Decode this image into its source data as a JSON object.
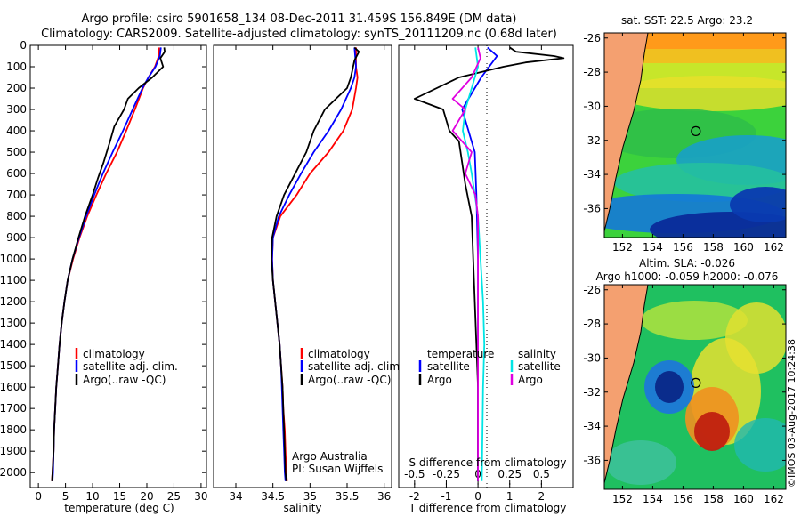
{
  "title_line1": "Argo profile: csiro 5901658_134 08-Dec-2011 31.459S 156.849E (DM data)",
  "title_line2": "Climatology: CARS2009. Satellite-adjusted climatology: synTS_20111209.nc (0.68d later)",
  "timestamp": "©IMOS 03-Aug-2017 10:24:38",
  "colors": {
    "clim": "#ff0000",
    "sat": "#0000ff",
    "argo": "#000000",
    "sal_sat": "#00e5e5",
    "sal_argo": "#e000e0",
    "land": "#f4a070"
  },
  "chart_data": [
    {
      "id": "temperature",
      "type": "line",
      "xlabel": "temperature (deg C)",
      "ylabel": "",
      "xlim": [
        -1.5,
        31
      ],
      "ylim": [
        2070,
        0
      ],
      "xticks": [
        "0",
        "5",
        "10",
        "15",
        "20",
        "25",
        "30"
      ],
      "yticks": [
        "0",
        "100",
        "200",
        "300",
        "400",
        "500",
        "600",
        "700",
        "800",
        "900",
        "1000",
        "1100",
        "1200",
        "1300",
        "1400",
        "1500",
        "1600",
        "1700",
        "1800",
        "1900",
        "2000"
      ],
      "legend": [
        "climatology",
        "satellite-adj. clim.",
        "Argo(..raw -QC)"
      ],
      "series": [
        {
          "name": "climatology",
          "color": "#ff0000",
          "points": [
            [
              22.3,
              10
            ],
            [
              22.2,
              50
            ],
            [
              21.5,
              100
            ],
            [
              20.3,
              150
            ],
            [
              19.3,
              200
            ],
            [
              17.8,
              300
            ],
            [
              16.2,
              400
            ],
            [
              14.5,
              500
            ],
            [
              12.5,
              600
            ],
            [
              10.7,
              700
            ],
            [
              9.0,
              800
            ],
            [
              7.6,
              900
            ],
            [
              6.4,
              1000
            ],
            [
              5.4,
              1100
            ],
            [
              4.8,
              1200
            ],
            [
              4.3,
              1300
            ],
            [
              3.9,
              1400
            ],
            [
              3.6,
              1500
            ],
            [
              3.3,
              1600
            ],
            [
              3.1,
              1700
            ],
            [
              2.9,
              1800
            ],
            [
              2.8,
              1900
            ],
            [
              2.6,
              2000
            ],
            [
              2.5,
              2040
            ]
          ]
        },
        {
          "name": "satellite-adj. clim.",
          "color": "#0000ff",
          "points": [
            [
              22.6,
              10
            ],
            [
              22.4,
              50
            ],
            [
              21.6,
              100
            ],
            [
              20.3,
              150
            ],
            [
              19.2,
              200
            ],
            [
              17.4,
              300
            ],
            [
              15.6,
              400
            ],
            [
              13.7,
              500
            ],
            [
              11.9,
              600
            ],
            [
              10.3,
              700
            ],
            [
              8.8,
              800
            ],
            [
              7.5,
              900
            ],
            [
              6.3,
              1000
            ],
            [
              5.4,
              1100
            ],
            [
              4.8,
              1200
            ],
            [
              4.3,
              1300
            ],
            [
              3.9,
              1400
            ],
            [
              3.6,
              1500
            ],
            [
              3.3,
              1600
            ],
            [
              3.1,
              1700
            ],
            [
              2.9,
              1800
            ],
            [
              2.8,
              1900
            ],
            [
              2.7,
              2000
            ],
            [
              2.6,
              2040
            ]
          ]
        },
        {
          "name": "Argo(..raw -QC)",
          "color": "#000000",
          "points": [
            [
              23.2,
              10
            ],
            [
              23.3,
              30
            ],
            [
              22.5,
              60
            ],
            [
              23.0,
              100
            ],
            [
              21.0,
              150
            ],
            [
              18.5,
              200
            ],
            [
              16.5,
              250
            ],
            [
              15.8,
              300
            ],
            [
              14.0,
              380
            ],
            [
              13.2,
              450
            ],
            [
              12.0,
              550
            ],
            [
              11.0,
              620
            ],
            [
              10.0,
              700
            ],
            [
              8.6,
              800
            ],
            [
              7.4,
              900
            ],
            [
              6.3,
              1000
            ],
            [
              5.4,
              1100
            ],
            [
              4.8,
              1200
            ],
            [
              4.3,
              1300
            ],
            [
              3.9,
              1400
            ],
            [
              3.6,
              1500
            ],
            [
              3.3,
              1600
            ],
            [
              3.1,
              1700
            ],
            [
              2.9,
              1800
            ],
            [
              2.8,
              1900
            ],
            [
              2.6,
              2000
            ],
            [
              2.5,
              2040
            ]
          ]
        }
      ]
    },
    {
      "id": "salinity",
      "type": "line",
      "xlabel": "salinity",
      "xlim": [
        33.7,
        36.1
      ],
      "ylim": [
        2070,
        0
      ],
      "xticks": [
        "34",
        "34.5",
        "35",
        "35.5",
        "36"
      ],
      "legend": [
        "climatology",
        "satellite-adj. clim.",
        "Argo(..raw -QC)"
      ],
      "annotation": [
        "Argo Australia",
        "PI: Susan Wijffels"
      ],
      "series": [
        {
          "name": "climatology",
          "color": "#ff0000",
          "points": [
            [
              35.62,
              10
            ],
            [
              35.62,
              100
            ],
            [
              35.64,
              150
            ],
            [
              35.62,
              200
            ],
            [
              35.57,
              300
            ],
            [
              35.45,
              400
            ],
            [
              35.25,
              500
            ],
            [
              35.0,
              600
            ],
            [
              34.82,
              700
            ],
            [
              34.6,
              800
            ],
            [
              34.5,
              900
            ],
            [
              34.49,
              1000
            ],
            [
              34.5,
              1100
            ],
            [
              34.53,
              1200
            ],
            [
              34.56,
              1300
            ],
            [
              34.59,
              1400
            ],
            [
              34.61,
              1500
            ],
            [
              34.63,
              1600
            ],
            [
              34.64,
              1700
            ],
            [
              34.66,
              1800
            ],
            [
              34.67,
              1900
            ],
            [
              34.68,
              2000
            ],
            [
              34.69,
              2040
            ]
          ]
        },
        {
          "name": "satellite-adj. clim.",
          "color": "#0000ff",
          "points": [
            [
              35.6,
              10
            ],
            [
              35.62,
              100
            ],
            [
              35.6,
              150
            ],
            [
              35.55,
              200
            ],
            [
              35.42,
              300
            ],
            [
              35.25,
              400
            ],
            [
              35.05,
              500
            ],
            [
              34.88,
              600
            ],
            [
              34.72,
              700
            ],
            [
              34.58,
              800
            ],
            [
              34.5,
              900
            ],
            [
              34.49,
              1000
            ],
            [
              34.5,
              1100
            ],
            [
              34.53,
              1200
            ],
            [
              34.56,
              1300
            ],
            [
              34.59,
              1400
            ],
            [
              34.61,
              1500
            ],
            [
              34.62,
              1600
            ],
            [
              34.63,
              1700
            ],
            [
              34.64,
              1800
            ],
            [
              34.65,
              1900
            ],
            [
              34.66,
              2000
            ],
            [
              34.67,
              2040
            ]
          ]
        },
        {
          "name": "Argo(..raw -QC)",
          "color": "#000000",
          "points": [
            [
              35.6,
              10
            ],
            [
              35.66,
              30
            ],
            [
              35.6,
              70
            ],
            [
              35.55,
              150
            ],
            [
              35.5,
              200
            ],
            [
              35.2,
              300
            ],
            [
              35.05,
              400
            ],
            [
              34.95,
              500
            ],
            [
              34.8,
              600
            ],
            [
              34.65,
              700
            ],
            [
              34.55,
              800
            ],
            [
              34.49,
              900
            ],
            [
              34.48,
              1000
            ],
            [
              34.5,
              1100
            ],
            [
              34.53,
              1200
            ],
            [
              34.56,
              1300
            ],
            [
              34.59,
              1400
            ],
            [
              34.61,
              1500
            ],
            [
              34.63,
              1600
            ],
            [
              34.64,
              1700
            ],
            [
              34.65,
              1800
            ],
            [
              34.66,
              1900
            ],
            [
              34.67,
              2000
            ],
            [
              34.68,
              2040
            ]
          ]
        }
      ]
    },
    {
      "id": "difference",
      "type": "line",
      "xlabel": "T difference from climatology",
      "xlabel_top": "S difference from climatology",
      "xlim": [
        -2.5,
        3.0
      ],
      "ylim": [
        2070,
        0
      ],
      "xticks": [
        "-2",
        "-1",
        "0",
        "1",
        "2"
      ],
      "xticks_top": [
        "-0.5",
        "-0.25",
        "0",
        "0.25",
        "0.5"
      ],
      "legend": {
        "temperature_title": "temperature",
        "salinity_title": "salinity",
        "temperature": [
          "satellite",
          "Argo"
        ],
        "salinity": [
          "satellite",
          "Argo"
        ]
      },
      "series": [
        {
          "name": "T satellite",
          "color": "#0000ff",
          "points": [
            [
              0.3,
              10
            ],
            [
              0.6,
              50
            ],
            [
              0.1,
              150
            ],
            [
              -0.3,
              250
            ],
            [
              -0.5,
              300
            ],
            [
              -0.3,
              400
            ],
            [
              -0.1,
              500
            ],
            [
              -0.05,
              700
            ],
            [
              0,
              1000
            ],
            [
              0,
              2040
            ]
          ]
        },
        {
          "name": "T Argo",
          "color": "#000000",
          "points": [
            [
              1.0,
              10
            ],
            [
              1.2,
              30
            ],
            [
              2.4,
              50
            ],
            [
              2.7,
              60
            ],
            [
              1.5,
              80
            ],
            [
              0.8,
              100
            ],
            [
              -0.6,
              150
            ],
            [
              -2.0,
              250
            ],
            [
              -1.1,
              300
            ],
            [
              -0.9,
              400
            ],
            [
              -0.6,
              450
            ],
            [
              -0.5,
              550
            ],
            [
              -0.4,
              650
            ],
            [
              -0.2,
              800
            ],
            [
              -0.15,
              1000
            ],
            [
              -0.1,
              1200
            ],
            [
              -0.05,
              1400
            ],
            [
              0,
              1600
            ],
            [
              0,
              2040
            ]
          ]
        },
        {
          "name": "S satellite",
          "color": "#00e5e5",
          "points": [
            [
              -0.02,
              10
            ],
            [
              0.0,
              100
            ],
            [
              -0.05,
              200
            ],
            [
              -0.1,
              300
            ],
            [
              -0.12,
              400
            ],
            [
              -0.08,
              500
            ],
            [
              -0.05,
              600
            ],
            [
              0.0,
              800
            ],
            [
              0.02,
              1000
            ],
            [
              0.04,
              1200
            ],
            [
              0.05,
              1400
            ],
            [
              0.04,
              1600
            ],
            [
              0.03,
              2040
            ]
          ]
        },
        {
          "name": "S Argo",
          "color": "#e000e0",
          "points": [
            [
              0.0,
              10
            ],
            [
              0.02,
              60
            ],
            [
              -0.05,
              150
            ],
            [
              -0.2,
              250
            ],
            [
              -0.1,
              300
            ],
            [
              -0.2,
              400
            ],
            [
              -0.05,
              500
            ],
            [
              -0.1,
              600
            ],
            [
              -0.02,
              700
            ],
            [
              0.0,
              800
            ],
            [
              0.0,
              2040
            ]
          ]
        }
      ]
    },
    {
      "id": "sst_map",
      "type": "heatmap",
      "title": "sat. SST: 22.5  Argo: 23.2",
      "xlim": [
        150.8,
        162.8
      ],
      "ylim": [
        -37.7,
        -25.7
      ],
      "xticks": [
        "152",
        "154",
        "156",
        "158",
        "160",
        "162"
      ],
      "yticks": [
        "-26",
        "-28",
        "-30",
        "-32",
        "-34",
        "-36"
      ],
      "profile_location": [
        156.849,
        -31.459
      ]
    },
    {
      "id": "sla_map",
      "type": "heatmap",
      "title_line1": "Altim. SLA: -0.026",
      "title_line2": "Argo h1000: -0.059 h2000: -0.076",
      "xlim": [
        150.8,
        162.8
      ],
      "ylim": [
        -37.7,
        -25.7
      ],
      "xticks": [
        "152",
        "154",
        "156",
        "158",
        "160",
        "162"
      ],
      "yticks": [
        "-26",
        "-28",
        "-30",
        "-32",
        "-34",
        "-36"
      ],
      "profile_location": [
        156.849,
        -31.459
      ]
    }
  ]
}
